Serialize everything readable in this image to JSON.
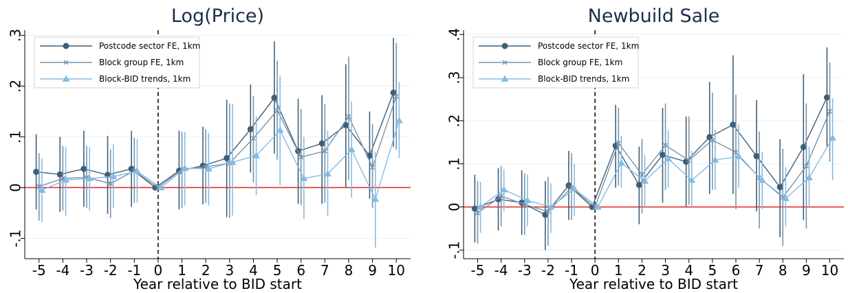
{
  "chart_data": [
    {
      "type": "line",
      "title": "Log(Price)",
      "xlabel": "Year relative to BID start",
      "ylabel": "",
      "x": [
        -5,
        -4,
        -3,
        -2,
        -1,
        0,
        1,
        2,
        3,
        4,
        5,
        6,
        7,
        8,
        9,
        10
      ],
      "xlim": [
        -5.6,
        10.6
      ],
      "ylim": [
        -0.14,
        0.31
      ],
      "yticks": [
        -0.1,
        0,
        0.1,
        0.2,
        0.3
      ],
      "ytick_labels": [
        "-.1",
        "0",
        ".1",
        ".2",
        ".3"
      ],
      "xtick_labels": [
        "-5",
        "-4",
        "-3",
        "-2",
        "-1",
        "0",
        "1",
        "2",
        "3",
        "4",
        "5",
        "6",
        "7",
        "8",
        "9",
        "10"
      ],
      "reference_line": {
        "y": 0,
        "color": "#e8211b"
      },
      "event_line": {
        "x": 0,
        "style": "dashed",
        "color": "#000000"
      },
      "legend_position": "top-left",
      "grid": true,
      "series": [
        {
          "name": "Postcode sector FE, 1km",
          "marker": "circle",
          "color": "#3e5f78",
          "values": [
            0.031,
            0.026,
            0.037,
            0.025,
            0.037,
            0.0,
            0.033,
            0.043,
            0.058,
            0.115,
            0.177,
            0.072,
            0.087,
            0.123,
            0.063,
            0.187
          ],
          "ci_low": [
            -0.043,
            -0.048,
            -0.038,
            -0.052,
            -0.038,
            -0.003,
            -0.043,
            -0.033,
            -0.058,
            0.03,
            0.067,
            -0.032,
            -0.032,
            0.0,
            -0.022,
            0.08
          ],
          "ci_high": [
            0.105,
            0.1,
            0.112,
            0.102,
            0.112,
            0.003,
            0.112,
            0.12,
            0.173,
            0.203,
            0.288,
            0.175,
            0.182,
            0.243,
            0.15,
            0.295
          ]
        },
        {
          "name": "Block group FE, 1km",
          "marker": "x",
          "color": "#7a92a8",
          "values": [
            0.002,
            0.018,
            0.02,
            0.008,
            0.033,
            0.0,
            0.036,
            0.041,
            0.048,
            0.097,
            0.152,
            0.06,
            0.072,
            0.14,
            0.04,
            0.18
          ],
          "ci_low": [
            -0.065,
            -0.045,
            -0.04,
            -0.06,
            -0.03,
            -0.003,
            -0.04,
            -0.03,
            -0.06,
            0.01,
            0.055,
            -0.035,
            -0.03,
            0.015,
            -0.04,
            0.075
          ],
          "ci_high": [
            0.068,
            0.082,
            0.082,
            0.075,
            0.098,
            0.003,
            0.11,
            0.115,
            0.165,
            0.18,
            0.25,
            0.155,
            0.165,
            0.258,
            0.125,
            0.285
          ]
        },
        {
          "name": "Block-BID trends, 1km",
          "marker": "triangle",
          "color": "#84bce4",
          "values": [
            -0.005,
            0.015,
            0.018,
            0.022,
            0.032,
            0.0,
            0.038,
            0.037,
            0.05,
            0.063,
            0.113,
            0.018,
            0.027,
            0.075,
            -0.023,
            0.132
          ],
          "ci_low": [
            -0.068,
            -0.055,
            -0.045,
            -0.04,
            -0.03,
            -0.003,
            -0.035,
            -0.035,
            -0.055,
            -0.015,
            0.005,
            -0.062,
            -0.055,
            -0.02,
            -0.118,
            0.058
          ],
          "ci_high": [
            0.057,
            0.08,
            0.08,
            0.085,
            0.095,
            0.003,
            0.11,
            0.108,
            0.165,
            0.14,
            0.22,
            0.1,
            0.112,
            0.17,
            0.07,
            0.208
          ]
        }
      ]
    },
    {
      "type": "line",
      "title": "Newbuild Sale",
      "xlabel": "Year relative to BID start",
      "ylabel": "",
      "x": [
        -5,
        -4,
        -3,
        -2,
        -1,
        0,
        1,
        2,
        3,
        4,
        5,
        6,
        7,
        8,
        9,
        10
      ],
      "xlim": [
        -5.6,
        10.6
      ],
      "ylim": [
        -0.12,
        0.41
      ],
      "yticks": [
        -0.1,
        0,
        0.1,
        0.2,
        0.3,
        0.4
      ],
      "ytick_labels": [
        "-.1",
        "0",
        ".1",
        ".2",
        ".3",
        ".4"
      ],
      "xtick_labels": [
        "-5",
        "-4",
        "-3",
        "-2",
        "-1",
        "0",
        "1",
        "2",
        "3",
        "4",
        "5",
        "6",
        "7",
        "8",
        "9",
        "10"
      ],
      "reference_line": {
        "y": 0,
        "color": "#e8211b"
      },
      "event_line": {
        "x": 0,
        "style": "dashed",
        "color": "#000000"
      },
      "legend_position": "top-left",
      "grid": true,
      "series": [
        {
          "name": "Postcode sector FE, 1km",
          "marker": "circle",
          "color": "#3e5f78",
          "values": [
            -0.004,
            0.018,
            0.01,
            -0.018,
            0.05,
            0.0,
            0.142,
            0.051,
            0.121,
            0.105,
            0.162,
            0.191,
            0.118,
            0.046,
            0.139,
            0.254
          ],
          "ci_low": [
            -0.082,
            -0.055,
            -0.065,
            -0.1,
            -0.03,
            -0.003,
            0.045,
            -0.04,
            0.01,
            0.0,
            0.03,
            0.03,
            -0.01,
            -0.07,
            -0.03,
            0.14
          ],
          "ci_high": [
            0.075,
            0.09,
            0.085,
            0.06,
            0.13,
            0.003,
            0.237,
            0.14,
            0.23,
            0.21,
            0.29,
            0.352,
            0.248,
            0.157,
            0.308,
            0.37
          ]
        },
        {
          "name": "Block group FE, 1km",
          "marker": "x",
          "color": "#7a92a8",
          "values": [
            -0.014,
            0.025,
            0.006,
            -0.011,
            0.045,
            0.0,
            0.148,
            0.075,
            0.143,
            0.108,
            0.155,
            0.127,
            0.068,
            0.022,
            0.095,
            0.222
          ],
          "ci_low": [
            -0.085,
            -0.045,
            -0.065,
            -0.09,
            -0.03,
            -0.003,
            0.05,
            -0.015,
            0.04,
            0.005,
            0.04,
            -0.005,
            -0.05,
            -0.09,
            -0.05,
            0.105
          ],
          "ci_high": [
            0.06,
            0.095,
            0.078,
            0.07,
            0.125,
            0.003,
            0.23,
            0.158,
            0.24,
            0.21,
            0.265,
            0.26,
            0.175,
            0.135,
            0.24,
            0.335
          ]
        },
        {
          "name": "Block-BID trends, 1km",
          "marker": "triangle",
          "color": "#84bce4",
          "values": [
            0.0,
            0.04,
            0.015,
            0.0,
            0.042,
            0.0,
            0.102,
            0.06,
            0.112,
            0.062,
            0.109,
            0.117,
            0.062,
            0.02,
            0.068,
            0.16
          ],
          "ci_low": [
            -0.06,
            -0.01,
            -0.045,
            -0.06,
            -0.02,
            -0.003,
            0.045,
            0.0,
            0.045,
            0.0,
            0.04,
            0.045,
            -0.005,
            -0.045,
            0.0,
            0.062
          ],
          "ci_high": [
            0.058,
            0.088,
            0.075,
            0.055,
            0.1,
            0.003,
            0.165,
            0.12,
            0.178,
            0.13,
            0.18,
            0.192,
            0.128,
            0.092,
            0.14,
            0.252
          ]
        }
      ]
    }
  ]
}
